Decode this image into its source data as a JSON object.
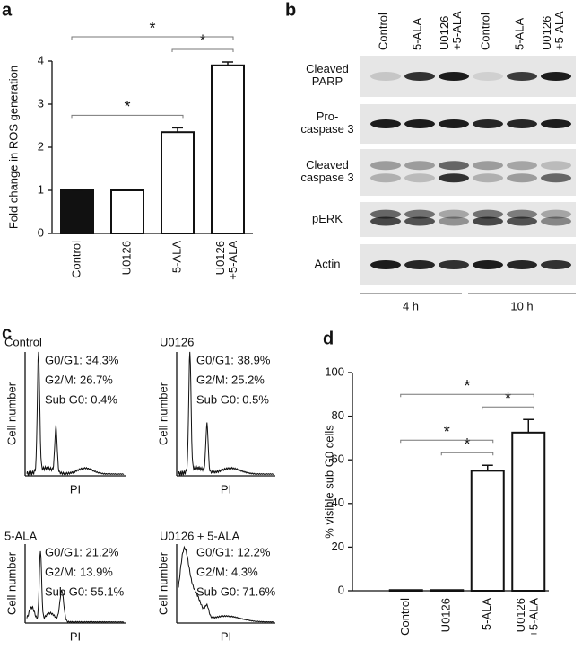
{
  "chart_data": [
    {
      "type": "bar",
      "panel": "a",
      "ylabel": "Fold change in ROS generation",
      "categories": [
        "Control",
        "U0126",
        "5-ALA",
        "U0126\n+5-ALA"
      ],
      "values": [
        1,
        1,
        2.35,
        3.9
      ],
      "errors": [
        0,
        0.02,
        0.1,
        0.08
      ],
      "colors": [
        "#111111",
        "#ffffff",
        "#ffffff",
        "#ffffff"
      ],
      "ylim": [
        0,
        4
      ],
      "yticks": [
        0,
        1,
        2,
        3,
        4
      ],
      "annotations": [
        {
          "text": "*",
          "between": [
            0,
            2
          ]
        },
        {
          "text": "*",
          "between": [
            2,
            3
          ]
        },
        {
          "text": "*",
          "between": [
            0,
            3
          ]
        }
      ]
    },
    {
      "type": "bar",
      "panel": "d",
      "ylabel": "% visible sub G0 cells",
      "categories": [
        "Control",
        "U0126",
        "5-ALA",
        "U0126\n+5-ALA"
      ],
      "values": [
        0.3,
        0.3,
        55,
        72.5
      ],
      "errors": [
        0,
        0,
        2.5,
        6
      ],
      "colors": [
        "#ffffff",
        "#ffffff",
        "#ffffff",
        "#ffffff"
      ],
      "ylim": [
        0,
        100
      ],
      "yticks": [
        0,
        20,
        40,
        60,
        80,
        100
      ],
      "annotations": [
        {
          "text": "*",
          "between": [
            1,
            2
          ]
        },
        {
          "text": "*",
          "between": [
            0,
            2
          ]
        },
        {
          "text": "*",
          "between": [
            2,
            3
          ]
        },
        {
          "text": "*",
          "between": [
            0,
            3
          ]
        }
      ]
    }
  ],
  "blot": {
    "panel": "b",
    "lanes": [
      "Control",
      "5-ALA",
      "U0126\n+5-ALA",
      "Control",
      "5-ALA",
      "U0126\n+5-ALA"
    ],
    "rows": [
      "Cleaved\nPARP",
      "Pro-\ncaspase 3",
      "Cleaved\ncaspase 3",
      "pERK",
      "Actin"
    ],
    "times": [
      "4 h",
      "10 h"
    ]
  },
  "flow": {
    "panel": "c",
    "xlabel": "PI",
    "ylabel": "Cell number",
    "plots": [
      {
        "title": "Control",
        "stats": [
          "G0/G1: 34.3%",
          "G2/M: 26.7%",
          "Sub G0: 0.4%"
        ]
      },
      {
        "title": "U0126",
        "stats": [
          "G0/G1: 38.9%",
          "G2/M: 25.2%",
          "Sub G0: 0.5%"
        ]
      },
      {
        "title": "5-ALA",
        "stats": [
          "G0/G1: 21.2%",
          "G2/M: 13.9%",
          "Sub G0: 55.1%"
        ]
      },
      {
        "title": "U0126 + 5-ALA",
        "stats": [
          "G0/G1: 12.2%",
          "G2/M: 4.3%",
          "Sub G0: 71.6%"
        ]
      }
    ]
  }
}
